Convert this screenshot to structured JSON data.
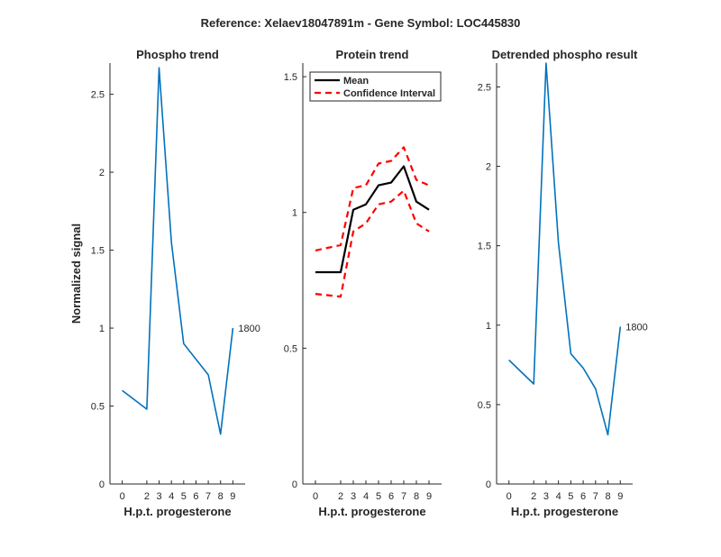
{
  "figure": {
    "title": "Reference:  Xelaev18047891m - Gene Symbol:  LOC445830"
  },
  "chart_data": [
    {
      "type": "line",
      "title": "Phospho trend",
      "xlabel": "H.p.t. progesterone",
      "ylabel": "Normalized signal",
      "x": [
        0,
        2,
        3,
        4,
        5,
        7,
        8,
        9
      ],
      "xticks": [
        "0",
        "2",
        "3",
        "4",
        "5",
        "6",
        "7",
        "8",
        "9"
      ],
      "xtick_values": [
        0,
        2,
        3,
        4,
        5,
        6,
        7,
        8,
        9
      ],
      "ylim": [
        0,
        2.7
      ],
      "yticks": [
        0,
        0.5,
        1,
        1.5,
        2,
        2.5
      ],
      "ytick_labels": [
        "0",
        "0.5",
        "1",
        "1.5",
        "2",
        "2.5"
      ],
      "series": [
        {
          "name": "Phospho",
          "color": "#0072bd",
          "style": "solid",
          "x": [
            0,
            2,
            3,
            4,
            5,
            7,
            8,
            9
          ],
          "values": [
            0.6,
            0.48,
            2.67,
            1.55,
            0.9,
            0.7,
            0.32,
            1.0
          ]
        }
      ],
      "end_label": "1800"
    },
    {
      "type": "line",
      "title": "Protein trend",
      "xlabel": "H.p.t. progesterone",
      "ylabel": "",
      "xticks": [
        "0",
        "2",
        "3",
        "4",
        "5",
        "6",
        "7",
        "8",
        "9"
      ],
      "xtick_values": [
        0,
        2,
        3,
        4,
        5,
        6,
        7,
        8,
        9
      ],
      "ylim": [
        0,
        1.55
      ],
      "yticks": [
        0,
        0.5,
        1,
        1.5
      ],
      "ytick_labels": [
        "0",
        "0.5",
        "1",
        "1.5"
      ],
      "legend": {
        "position": "top-left",
        "entries": [
          "Mean",
          "Confidence Interval"
        ]
      },
      "series": [
        {
          "name": "Mean",
          "color": "#000000",
          "style": "solid",
          "x": [
            0,
            2,
            3,
            4,
            5,
            6,
            7,
            8,
            9
          ],
          "values": [
            0.78,
            0.78,
            1.01,
            1.03,
            1.1,
            1.11,
            1.17,
            1.04,
            1.01
          ]
        },
        {
          "name": "Confidence Interval",
          "color": "#ff0000",
          "style": "dashed",
          "x": [
            0,
            2,
            3,
            4,
            5,
            6,
            7,
            8,
            9
          ],
          "values": [
            0.86,
            0.88,
            1.09,
            1.1,
            1.18,
            1.19,
            1.24,
            1.12,
            1.1
          ]
        },
        {
          "name": "Confidence Interval (lower)",
          "color": "#ff0000",
          "style": "dashed",
          "x": [
            0,
            2,
            3,
            4,
            5,
            6,
            7,
            8,
            9
          ],
          "values": [
            0.7,
            0.69,
            0.93,
            0.96,
            1.03,
            1.04,
            1.08,
            0.96,
            0.93
          ]
        }
      ]
    },
    {
      "type": "line",
      "title": "Detrended phospho result",
      "xlabel": "H.p.t. progesterone",
      "ylabel": "",
      "xticks": [
        "0",
        "2",
        "3",
        "4",
        "5",
        "6",
        "7",
        "8",
        "9"
      ],
      "xtick_values": [
        0,
        2,
        3,
        4,
        5,
        6,
        7,
        8,
        9
      ],
      "ylim": [
        0,
        2.65
      ],
      "yticks": [
        0,
        0.5,
        1,
        1.5,
        2,
        2.5
      ],
      "ytick_labels": [
        "0",
        "0.5",
        "1",
        "1.5",
        "2",
        "2.5"
      ],
      "series": [
        {
          "name": "Detrended",
          "color": "#0072bd",
          "style": "solid",
          "x": [
            0,
            2,
            3,
            4,
            5,
            6,
            7,
            8,
            9
          ],
          "values": [
            0.78,
            0.63,
            2.65,
            1.52,
            0.82,
            0.73,
            0.6,
            0.31,
            0.99
          ]
        }
      ],
      "end_label": "1800"
    }
  ]
}
